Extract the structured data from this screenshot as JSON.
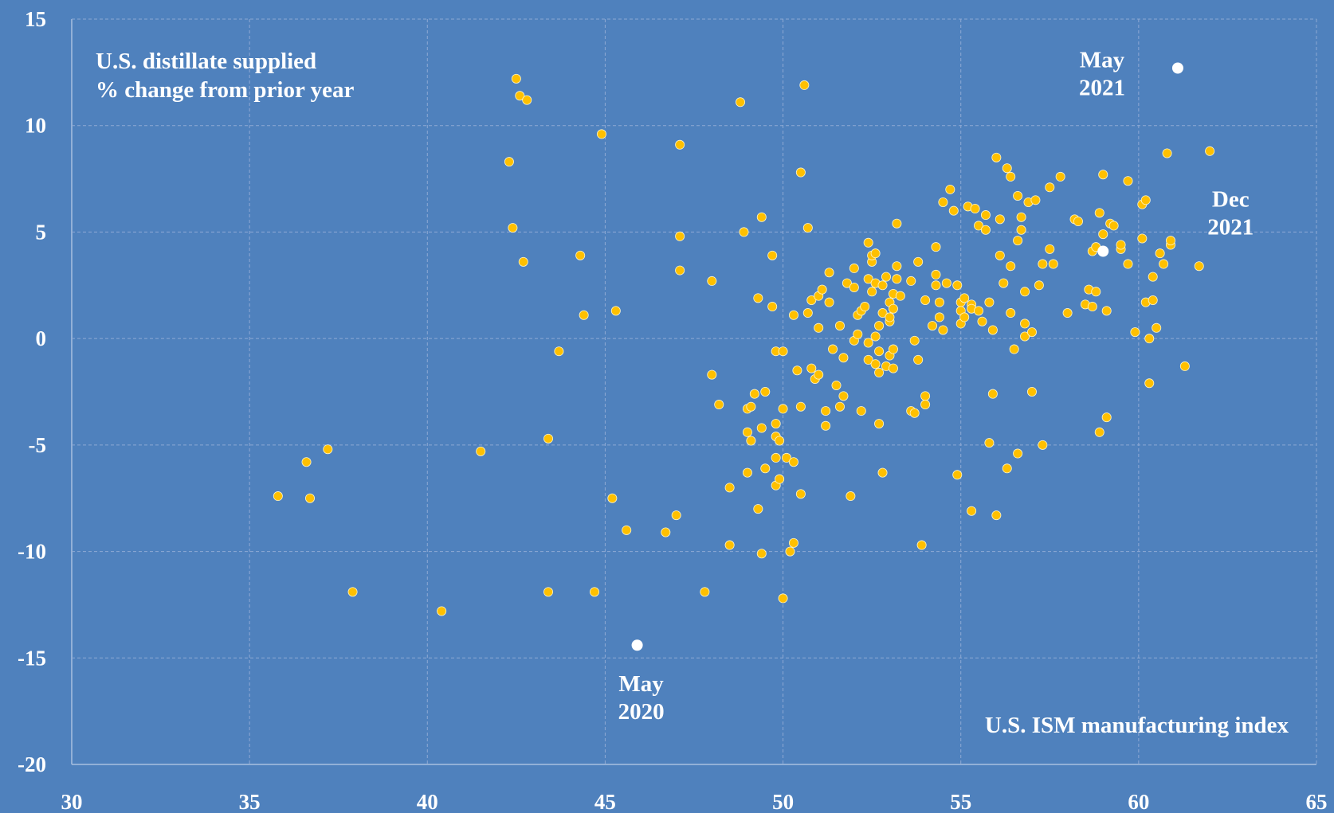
{
  "chart_data": {
    "type": "scatter",
    "title": "",
    "ylabel": "U.S. distillate supplied\n% change from prior year",
    "xlabel": "U.S. ISM manufacturing index",
    "xlim": [
      30,
      65
    ],
    "ylim": [
      -20,
      15
    ],
    "x_ticks": [
      "30",
      "35",
      "40",
      "45",
      "50",
      "55",
      "60",
      "65"
    ],
    "y_ticks": [
      "15",
      "10",
      "5",
      "0",
      "-5",
      "-10",
      "-15",
      "-20"
    ],
    "grid": true,
    "colors": {
      "background": "#4f81bd",
      "points": "#ffc000",
      "highlight": "#ffffff",
      "grid": "#8ea9d4"
    },
    "highlights": [
      {
        "label": "May\n2020",
        "x": 45.9,
        "y": -14.4,
        "label_pos": "below"
      },
      {
        "label": "May\n2021",
        "x": 61.1,
        "y": 12.7,
        "label_pos": "left"
      },
      {
        "label": "Dec\n2021",
        "x": 59.0,
        "y": 4.1,
        "label_pos": "right"
      }
    ],
    "points": [
      [
        35.8,
        -7.4
      ],
      [
        36.6,
        -5.8
      ],
      [
        36.7,
        -7.5
      ],
      [
        37.2,
        -5.2
      ],
      [
        37.9,
        -11.9
      ],
      [
        40.4,
        -12.8
      ],
      [
        41.5,
        -5.3
      ],
      [
        42.3,
        8.3
      ],
      [
        42.4,
        5.2
      ],
      [
        42.5,
        12.2
      ],
      [
        42.6,
        11.4
      ],
      [
        42.7,
        3.6
      ],
      [
        42.8,
        11.2
      ],
      [
        43.4,
        -4.7
      ],
      [
        43.4,
        -11.9
      ],
      [
        43.7,
        -0.6
      ],
      [
        44.3,
        3.9
      ],
      [
        44.4,
        1.1
      ],
      [
        44.7,
        -11.9
      ],
      [
        44.9,
        9.6
      ],
      [
        45.2,
        -7.5
      ],
      [
        45.3,
        1.3
      ],
      [
        45.6,
        -9.0
      ],
      [
        46.7,
        -9.1
      ],
      [
        47.0,
        -8.3
      ],
      [
        47.1,
        9.1
      ],
      [
        47.1,
        4.8
      ],
      [
        47.1,
        3.2
      ],
      [
        47.8,
        -11.9
      ],
      [
        48.0,
        2.7
      ],
      [
        48.0,
        -1.7
      ],
      [
        48.2,
        -3.1
      ],
      [
        48.5,
        -7.0
      ],
      [
        48.5,
        -9.7
      ],
      [
        48.8,
        11.1
      ],
      [
        48.9,
        5.0
      ],
      [
        49.0,
        -6.3
      ],
      [
        49.0,
        -3.3
      ],
      [
        49.0,
        -4.4
      ],
      [
        49.1,
        -4.8
      ],
      [
        49.1,
        -3.2
      ],
      [
        49.2,
        -2.6
      ],
      [
        49.3,
        -8.0
      ],
      [
        49.3,
        1.9
      ],
      [
        49.4,
        -4.2
      ],
      [
        49.4,
        -10.1
      ],
      [
        49.4,
        5.7
      ],
      [
        49.5,
        -2.5
      ],
      [
        49.5,
        -6.1
      ],
      [
        49.7,
        1.5
      ],
      [
        49.7,
        3.9
      ],
      [
        49.8,
        -0.6
      ],
      [
        49.8,
        -4.0
      ],
      [
        49.8,
        -4.6
      ],
      [
        49.8,
        -5.6
      ],
      [
        49.8,
        -6.9
      ],
      [
        49.9,
        -4.8
      ],
      [
        49.9,
        -6.6
      ],
      [
        50.0,
        -3.3
      ],
      [
        50.0,
        -0.6
      ],
      [
        50.0,
        -12.2
      ],
      [
        50.1,
        -5.6
      ],
      [
        50.2,
        -10.0
      ],
      [
        50.3,
        -5.8
      ],
      [
        50.3,
        -9.6
      ],
      [
        50.3,
        1.1
      ],
      [
        50.4,
        -1.5
      ],
      [
        50.5,
        7.8
      ],
      [
        50.5,
        -7.3
      ],
      [
        50.5,
        -3.2
      ],
      [
        50.6,
        11.9
      ],
      [
        50.7,
        1.2
      ],
      [
        50.7,
        5.2
      ],
      [
        50.8,
        -1.4
      ],
      [
        50.8,
        1.8
      ],
      [
        50.9,
        -1.9
      ],
      [
        51.0,
        -1.7
      ],
      [
        51.0,
        0.5
      ],
      [
        51.0,
        2.0
      ],
      [
        51.1,
        2.3
      ],
      [
        51.2,
        -4.1
      ],
      [
        51.2,
        -3.4
      ],
      [
        51.3,
        1.7
      ],
      [
        51.3,
        3.1
      ],
      [
        51.4,
        -0.5
      ],
      [
        51.5,
        -2.2
      ],
      [
        51.6,
        0.6
      ],
      [
        51.6,
        -3.2
      ],
      [
        51.7,
        -2.7
      ],
      [
        51.7,
        -0.9
      ],
      [
        51.8,
        2.6
      ],
      [
        51.9,
        -7.4
      ],
      [
        52.0,
        2.4
      ],
      [
        52.0,
        -0.1
      ],
      [
        52.0,
        3.3
      ],
      [
        52.1,
        0.2
      ],
      [
        52.1,
        1.1
      ],
      [
        52.2,
        -3.4
      ],
      [
        52.2,
        1.3
      ],
      [
        52.3,
        1.5
      ],
      [
        52.4,
        2.8
      ],
      [
        52.4,
        -0.2
      ],
      [
        52.4,
        4.5
      ],
      [
        52.4,
        -1.0
      ],
      [
        52.5,
        2.2
      ],
      [
        52.5,
        3.6
      ],
      [
        52.5,
        3.9
      ],
      [
        52.6,
        2.6
      ],
      [
        52.6,
        -1.2
      ],
      [
        52.6,
        4.0
      ],
      [
        52.6,
        0.1
      ],
      [
        52.7,
        -0.6
      ],
      [
        52.7,
        -1.6
      ],
      [
        52.7,
        0.6
      ],
      [
        52.7,
        -4.0
      ],
      [
        52.8,
        1.2
      ],
      [
        52.8,
        2.5
      ],
      [
        52.8,
        -6.3
      ],
      [
        52.9,
        -1.3
      ],
      [
        52.9,
        2.9
      ],
      [
        53.0,
        0.8
      ],
      [
        53.0,
        1.7
      ],
      [
        53.0,
        -0.8
      ],
      [
        53.0,
        1.0
      ],
      [
        53.1,
        2.1
      ],
      [
        53.1,
        -0.5
      ],
      [
        53.1,
        1.4
      ],
      [
        53.1,
        -1.4
      ],
      [
        53.2,
        5.4
      ],
      [
        53.2,
        2.8
      ],
      [
        53.2,
        3.4
      ],
      [
        53.3,
        2.0
      ],
      [
        53.6,
        2.7
      ],
      [
        53.6,
        -3.4
      ],
      [
        53.7,
        -0.1
      ],
      [
        53.7,
        -3.5
      ],
      [
        53.8,
        -1.0
      ],
      [
        53.8,
        3.6
      ],
      [
        53.9,
        -9.7
      ],
      [
        54.0,
        -2.7
      ],
      [
        54.0,
        1.8
      ],
      [
        54.0,
        -3.1
      ],
      [
        54.2,
        0.6
      ],
      [
        54.3,
        4.3
      ],
      [
        54.3,
        3.0
      ],
      [
        54.3,
        2.5
      ],
      [
        54.4,
        1.0
      ],
      [
        54.4,
        1.7
      ],
      [
        54.5,
        0.4
      ],
      [
        54.5,
        6.4
      ],
      [
        54.6,
        2.6
      ],
      [
        54.7,
        7.0
      ],
      [
        54.8,
        6.0
      ],
      [
        54.9,
        -6.4
      ],
      [
        54.9,
        2.5
      ],
      [
        55.0,
        1.7
      ],
      [
        55.0,
        1.3
      ],
      [
        55.0,
        0.7
      ],
      [
        55.1,
        1.9
      ],
      [
        55.1,
        1.0
      ],
      [
        55.2,
        6.2
      ],
      [
        55.3,
        1.6
      ],
      [
        55.3,
        -8.1
      ],
      [
        55.3,
        1.4
      ],
      [
        55.4,
        6.1
      ],
      [
        55.5,
        1.3
      ],
      [
        55.5,
        5.3
      ],
      [
        55.6,
        0.8
      ],
      [
        55.7,
        5.8
      ],
      [
        55.7,
        5.1
      ],
      [
        55.8,
        1.7
      ],
      [
        55.8,
        -4.9
      ],
      [
        55.9,
        -2.6
      ],
      [
        55.9,
        0.4
      ],
      [
        56.0,
        8.5
      ],
      [
        56.0,
        -8.3
      ],
      [
        56.1,
        5.6
      ],
      [
        56.1,
        3.9
      ],
      [
        56.2,
        2.6
      ],
      [
        56.3,
        8.0
      ],
      [
        56.3,
        -6.1
      ],
      [
        56.4,
        7.6
      ],
      [
        56.4,
        1.2
      ],
      [
        56.4,
        3.4
      ],
      [
        56.5,
        -0.5
      ],
      [
        56.6,
        6.7
      ],
      [
        56.6,
        4.6
      ],
      [
        56.6,
        -5.4
      ],
      [
        56.7,
        5.1
      ],
      [
        56.7,
        5.7
      ],
      [
        56.8,
        0.1
      ],
      [
        56.8,
        2.2
      ],
      [
        56.8,
        0.7
      ],
      [
        56.9,
        6.4
      ],
      [
        57.0,
        0.3
      ],
      [
        57.0,
        -2.5
      ],
      [
        57.1,
        6.5
      ],
      [
        57.2,
        2.5
      ],
      [
        57.3,
        3.5
      ],
      [
        57.3,
        -5.0
      ],
      [
        57.5,
        7.1
      ],
      [
        57.5,
        4.2
      ],
      [
        57.6,
        3.5
      ],
      [
        57.8,
        7.6
      ],
      [
        58.0,
        1.2
      ],
      [
        58.2,
        5.6
      ],
      [
        58.3,
        5.5
      ],
      [
        58.5,
        1.6
      ],
      [
        58.6,
        2.3
      ],
      [
        58.7,
        1.5
      ],
      [
        58.7,
        4.1
      ],
      [
        58.8,
        2.2
      ],
      [
        58.8,
        4.3
      ],
      [
        58.9,
        5.9
      ],
      [
        58.9,
        -4.4
      ],
      [
        59.0,
        7.7
      ],
      [
        59.0,
        4.9
      ],
      [
        59.1,
        1.3
      ],
      [
        59.1,
        -3.7
      ],
      [
        59.2,
        5.4
      ],
      [
        59.3,
        5.3
      ],
      [
        59.5,
        4.2
      ],
      [
        59.5,
        4.4
      ],
      [
        59.7,
        3.5
      ],
      [
        59.7,
        7.4
      ],
      [
        59.9,
        0.3
      ],
      [
        60.1,
        6.3
      ],
      [
        60.1,
        4.7
      ],
      [
        60.2,
        1.7
      ],
      [
        60.2,
        6.5
      ],
      [
        60.3,
        -2.1
      ],
      [
        60.3,
        0.0
      ],
      [
        60.4,
        2.9
      ],
      [
        60.4,
        1.8
      ],
      [
        60.5,
        0.5
      ],
      [
        60.6,
        4.0
      ],
      [
        60.7,
        3.5
      ],
      [
        60.8,
        8.7
      ],
      [
        60.9,
        4.4
      ],
      [
        60.9,
        4.6
      ],
      [
        61.3,
        -1.3
      ],
      [
        61.7,
        3.4
      ],
      [
        62.0,
        8.8
      ]
    ]
  }
}
